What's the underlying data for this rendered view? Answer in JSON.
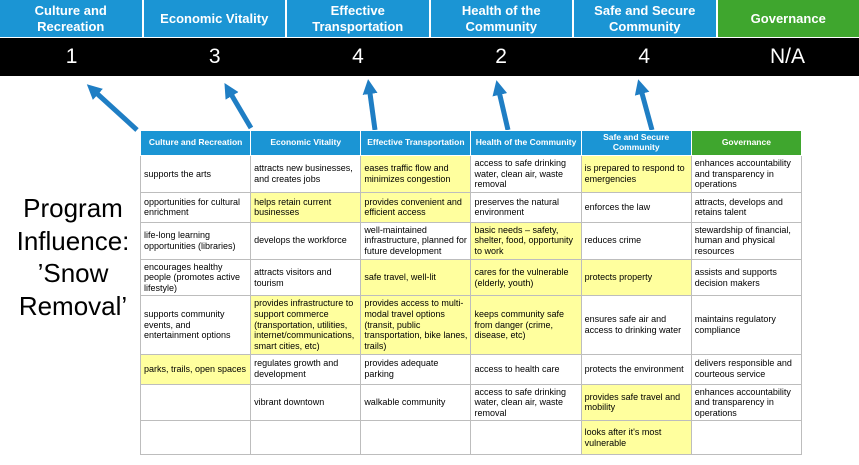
{
  "program_title": "Program Influence: ’Snow Removal’",
  "colors": {
    "pillar_blue": "#1b95d4",
    "pillar_green": "#3fa62e",
    "score_bar_black": "#000000",
    "highlight_yellow": "#ffff9e",
    "arrow_blue": "#1f7ec4"
  },
  "pillars": [
    {
      "label": "Culture and Recreation",
      "score": "1",
      "color": "blue"
    },
    {
      "label": "Economic Vitality",
      "score": "3",
      "color": "blue"
    },
    {
      "label": "Effective Transportation",
      "score": "4",
      "color": "blue"
    },
    {
      "label": "Health of the Community",
      "score": "2",
      "color": "blue"
    },
    {
      "label": "Safe and Secure Community",
      "score": "4",
      "color": "blue"
    },
    {
      "label": "Governance",
      "score": "N/A",
      "color": "green"
    }
  ],
  "table": {
    "rows": [
      [
        {
          "text": "supports the arts",
          "highlight": false
        },
        {
          "text": "attracts new businesses, and creates jobs",
          "highlight": false
        },
        {
          "text": "eases traffic flow and minimizes congestion",
          "highlight": true
        },
        {
          "text": "access to safe drinking water, clean air, waste removal",
          "highlight": false
        },
        {
          "text": "is prepared to respond to emergencies",
          "highlight": true
        },
        {
          "text": "enhances accountability and transparency in operations",
          "highlight": false
        }
      ],
      [
        {
          "text": "opportunities for cultural enrichment",
          "highlight": false
        },
        {
          "text": "helps retain current businesses",
          "highlight": true
        },
        {
          "text": "provides convenient and efficient access",
          "highlight": true
        },
        {
          "text": "preserves the natural environment",
          "highlight": false
        },
        {
          "text": "enforces the law",
          "highlight": false
        },
        {
          "text": "attracts, develops and retains talent",
          "highlight": false
        }
      ],
      [
        {
          "text": "life-long learning opportunities (libraries)",
          "highlight": false
        },
        {
          "text": "develops the workforce",
          "highlight": false
        },
        {
          "text": "well-maintained infrastructure, planned for future development",
          "highlight": false
        },
        {
          "text": "basic needs – safety, shelter, food, opportunity to work",
          "highlight": true
        },
        {
          "text": "reduces crime",
          "highlight": false
        },
        {
          "text": "stewardship of financial, human and physical resources",
          "highlight": false
        }
      ],
      [
        {
          "text": "encourages healthy people (promotes active lifestyle)",
          "highlight": false
        },
        {
          "text": "attracts visitors and tourism",
          "highlight": false
        },
        {
          "text": "safe travel, well-lit",
          "highlight": true
        },
        {
          "text": "cares for the vulnerable (elderly, youth)",
          "highlight": true
        },
        {
          "text": "protects property",
          "highlight": true
        },
        {
          "text": "assists and supports decision makers",
          "highlight": false
        }
      ],
      [
        {
          "text": "supports community events, and entertainment options",
          "highlight": false
        },
        {
          "text": "provides infrastructure to support commerce (transportation, utilities, internet/communications, smart cities, etc)",
          "highlight": true
        },
        {
          "text": "provides access to multi-modal travel options (transit, public transportation, bike lanes, trails)",
          "highlight": true
        },
        {
          "text": "keeps community safe from danger (crime, disease, etc)",
          "highlight": true
        },
        {
          "text": "ensures safe air and access to drinking water",
          "highlight": false
        },
        {
          "text": "maintains regulatory compliance",
          "highlight": false
        }
      ],
      [
        {
          "text": "parks, trails, open spaces",
          "highlight": true
        },
        {
          "text": "regulates growth and development",
          "highlight": false
        },
        {
          "text": "provides adequate parking",
          "highlight": false
        },
        {
          "text": "access to health care",
          "highlight": false
        },
        {
          "text": "protects the environment",
          "highlight": false
        },
        {
          "text": "delivers responsible and courteous service",
          "highlight": false
        }
      ],
      [
        {
          "text": "",
          "highlight": false
        },
        {
          "text": "vibrant downtown",
          "highlight": false
        },
        {
          "text": "walkable community",
          "highlight": false
        },
        {
          "text": "access to safe drinking water, clean air, waste removal",
          "highlight": false
        },
        {
          "text": "provides safe travel and mobility",
          "highlight": true
        },
        {
          "text": "enhances accountability and transparency in operations",
          "highlight": false
        }
      ],
      [
        {
          "text": "",
          "highlight": false
        },
        {
          "text": "",
          "highlight": false
        },
        {
          "text": "",
          "highlight": false
        },
        {
          "text": "",
          "highlight": false
        },
        {
          "text": "looks after it's most vulnerable",
          "highlight": true
        },
        {
          "text": "",
          "highlight": false
        }
      ]
    ]
  }
}
